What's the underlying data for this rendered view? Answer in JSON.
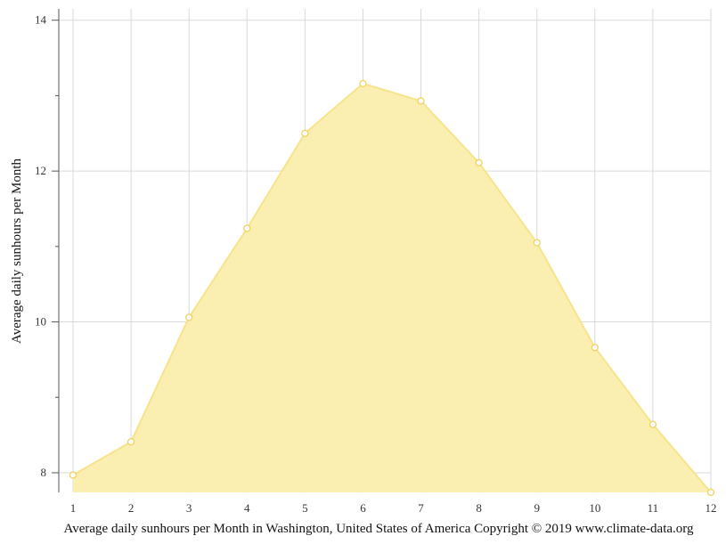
{
  "chart_data": {
    "type": "area",
    "x": [
      1,
      2,
      3,
      4,
      5,
      6,
      7,
      8,
      9,
      10,
      11,
      12
    ],
    "x_tick_labels": [
      "1",
      "2",
      "3",
      "4",
      "5",
      "6",
      "7",
      "8",
      "9",
      "10",
      "11",
      "12"
    ],
    "series": [
      {
        "values": [
          7.97,
          8.41,
          10.06,
          11.24,
          12.5,
          13.16,
          12.93,
          12.11,
          11.05,
          9.66,
          8.64,
          7.74
        ]
      }
    ],
    "ylabel": "Average daily sunhours per Month",
    "caption": "Average daily sunhours per Month in Washington, United States of America Copyright © 2019 www.climate-data.org",
    "ylim": [
      7.74,
      14.15
    ],
    "y_ticks": [
      8,
      10,
      12,
      14
    ],
    "y_tick_labels": [
      "8",
      "10",
      "12",
      "14"
    ],
    "y_minor_ticks": [
      9,
      11,
      13
    ],
    "xlim": [
      1,
      12
    ],
    "grid": true,
    "legend": "none",
    "colors": {
      "fill": "#faeeac",
      "line": "#f7e38a",
      "marker_stroke": "#f2d25c",
      "marker_fill": "#ffffff",
      "grid": "#d9d9d9",
      "axis": "#555555"
    }
  }
}
